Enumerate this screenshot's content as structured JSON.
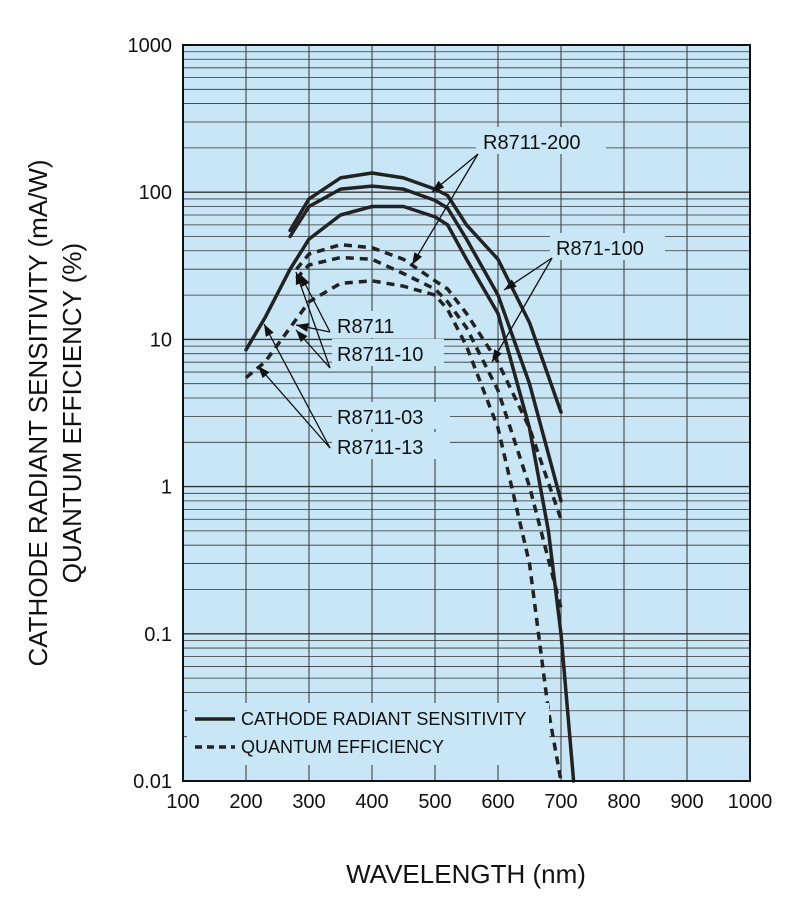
{
  "chart_data": {
    "type": "line",
    "title": "",
    "xlabel": "WAVELENGTH (nm)",
    "ylabel_line1": "CATHODE RADIANT SENSITIVITY (mA/W)",
    "ylabel_line2": "QUANTUM EFFICIENCY (%)",
    "xlim": [
      100,
      1000
    ],
    "ylim": [
      0.01,
      1000
    ],
    "yscale": "log",
    "grid": true,
    "plot_background": "#c8e6f5",
    "line_color": "#222222",
    "x_ticks": [
      "100",
      "200",
      "300",
      "400",
      "500",
      "600",
      "700",
      "800",
      "900",
      "1000"
    ],
    "y_ticks": [
      "1000",
      "100",
      "10",
      "1",
      "0.1",
      "0.01"
    ],
    "legend": {
      "placement": "bottom-left",
      "entries": [
        {
          "label": "CATHODE RADIANT SENSITIVITY",
          "style": "solid"
        },
        {
          "label": "QUANTUM EFFICIENCY",
          "style": "dashed"
        }
      ]
    },
    "annotations": [
      "R8711-200",
      "R871-100",
      "R8711",
      "R8711-10",
      "R8711-03",
      "R8711-13"
    ],
    "series": [
      {
        "style": "solid",
        "points": [
          [
            270,
            55
          ],
          [
            300,
            90
          ],
          [
            350,
            125
          ],
          [
            400,
            135
          ],
          [
            450,
            125
          ],
          [
            500,
            105
          ],
          [
            520,
            95
          ],
          [
            550,
            60
          ],
          [
            600,
            35
          ],
          [
            650,
            13
          ],
          [
            700,
            3.2
          ]
        ]
      },
      {
        "style": "solid",
        "points": [
          [
            270,
            50
          ],
          [
            300,
            80
          ],
          [
            350,
            105
          ],
          [
            400,
            110
          ],
          [
            450,
            105
          ],
          [
            500,
            88
          ],
          [
            520,
            78
          ],
          [
            550,
            48
          ],
          [
            600,
            20
          ],
          [
            650,
            5
          ],
          [
            700,
            0.8
          ]
        ]
      },
      {
        "style": "solid",
        "points": [
          [
            200,
            8.5
          ],
          [
            230,
            14
          ],
          [
            270,
            30
          ],
          [
            300,
            48
          ],
          [
            350,
            70
          ],
          [
            400,
            80
          ],
          [
            450,
            80
          ],
          [
            500,
            68
          ],
          [
            520,
            60
          ],
          [
            550,
            35
          ],
          [
            600,
            15
          ],
          [
            650,
            2.5
          ],
          [
            680,
            0.5
          ],
          [
            700,
            0.1
          ],
          [
            720,
            0.01
          ]
        ]
      },
      {
        "style": "dashed",
        "points": [
          [
            280,
            30
          ],
          [
            300,
            38
          ],
          [
            350,
            44
          ],
          [
            400,
            42
          ],
          [
            450,
            35
          ],
          [
            500,
            25
          ],
          [
            520,
            22
          ],
          [
            550,
            15
          ],
          [
            600,
            7
          ],
          [
            650,
            2.5
          ],
          [
            700,
            0.6
          ]
        ]
      },
      {
        "style": "dashed",
        "points": [
          [
            280,
            26
          ],
          [
            300,
            32
          ],
          [
            350,
            36
          ],
          [
            400,
            35
          ],
          [
            450,
            28
          ],
          [
            500,
            22
          ],
          [
            520,
            18
          ],
          [
            550,
            12
          ],
          [
            600,
            4.5
          ],
          [
            650,
            1.0
          ],
          [
            700,
            0.15
          ]
        ]
      },
      {
        "style": "dashed",
        "points": [
          [
            200,
            5.5
          ],
          [
            230,
            7
          ],
          [
            270,
            12
          ],
          [
            300,
            18
          ],
          [
            350,
            24
          ],
          [
            400,
            25
          ],
          [
            450,
            23
          ],
          [
            500,
            20
          ],
          [
            520,
            16
          ],
          [
            550,
            9
          ],
          [
            600,
            2.5
          ],
          [
            650,
            0.3
          ],
          [
            680,
            0.03
          ],
          [
            700,
            0.01
          ]
        ]
      }
    ]
  }
}
